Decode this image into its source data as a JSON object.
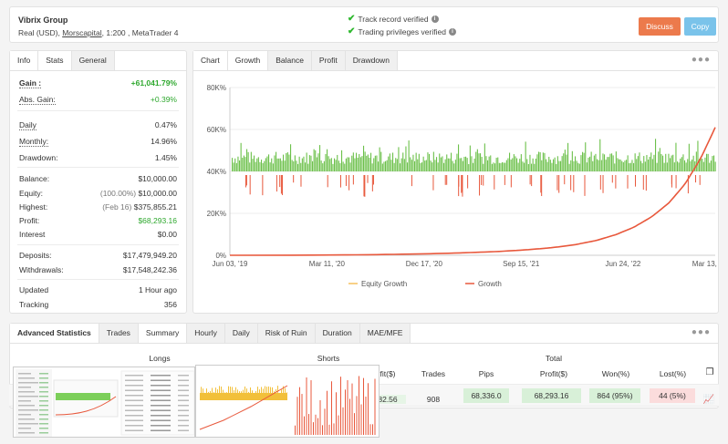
{
  "header": {
    "account_name": "Vibrix Group",
    "account_type": "Real (USD),",
    "broker": "Morscapital",
    "account_tail": ", 1:200 , MetaTrader 4",
    "verify_track": "Track record verified",
    "verify_privileges": "Trading privileges verified",
    "discuss_label": "Discuss",
    "copy_label": "Copy"
  },
  "stats_tabs": [
    "Info",
    "Stats",
    "General"
  ],
  "stats": {
    "gain_label": "Gain :",
    "gain_value": "+61,041.79%",
    "abs_gain_label": "Abs. Gain:",
    "abs_gain_value": "+0.39%",
    "daily_label": "Daily",
    "daily_value": "0.47%",
    "monthly_label": "Monthly:",
    "monthly_value": "14.96%",
    "drawdown_label": "Drawdown:",
    "drawdown_value": "1.45%",
    "balance_label": "Balance:",
    "balance_value": "$10,000.00",
    "equity_label": "Equity:",
    "equity_pct": "(100.00%)",
    "equity_value": "$10,000.00",
    "highest_label": "Highest:",
    "highest_date": "(Feb 16)",
    "highest_value": "$375,855.21",
    "profit_label": "Profit:",
    "profit_value": "$68,293.16",
    "interest_label": "Interest",
    "interest_value": "$0.00",
    "deposits_label": "Deposits:",
    "deposits_value": "$17,479,949.20",
    "withdrawals_label": "Withdrawals:",
    "withdrawals_value": "$17,548,242.36",
    "updated_label": "Updated",
    "updated_value": "1 Hour ago",
    "tracking_label": "Tracking",
    "tracking_value": "356"
  },
  "chart_tabs": [
    "Chart",
    "Growth",
    "Balance",
    "Profit",
    "Drawdown"
  ],
  "chart_data": {
    "type": "line",
    "y_ticks": [
      "80K%",
      "60K%",
      "40K%",
      "20K%",
      "0%"
    ],
    "ylim": [
      0,
      80000
    ],
    "x_ticks": [
      "Jun 03, '19",
      "Mar 11, '20",
      "Dec 17, '20",
      "Sep 15, '21",
      "Jun 24, '22",
      "Mar 13, '23"
    ],
    "series": [
      {
        "name": "Equity Growth",
        "color": "#f5c15d"
      },
      {
        "name": "Growth",
        "color": "#e8583c",
        "values": [
          0,
          300,
          700,
          1200,
          1800,
          2600,
          3600,
          5000,
          7000,
          9800,
          13500,
          18500,
          25000,
          34000,
          46000,
          61000
        ]
      }
    ],
    "bars_color_pos": "#6cc04a",
    "bars_color_neg": "#e8583c",
    "grid": true,
    "legend_position": "bottom"
  },
  "adv_tabs": [
    "Advanced Statistics",
    "Trades",
    "Summary",
    "Hourly",
    "Daily",
    "Risk of Ruin",
    "Duration",
    "MAE/MFE"
  ],
  "adv": {
    "group_longs": "Longs",
    "group_shorts": "Shorts",
    "group_total": "Total",
    "headers": [
      "fit($)",
      "Trades",
      "Pips",
      "Profit($)",
      "Won(%)",
      "Lost(%)"
    ],
    "values": [
      "82.56",
      "908",
      "68,336.0",
      "68,293.16",
      "864 (95%)",
      "44 (5%)"
    ]
  }
}
